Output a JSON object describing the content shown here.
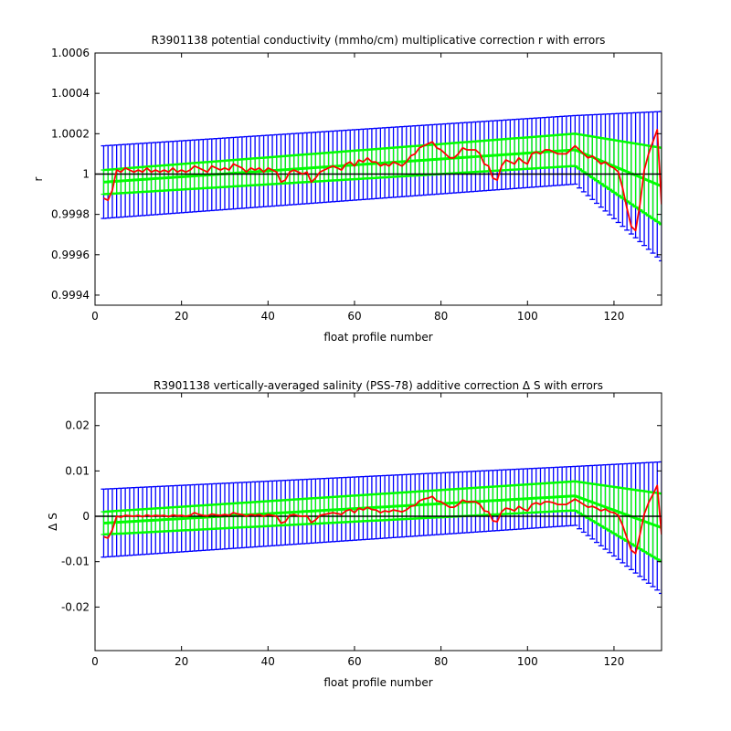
{
  "colors": {
    "background": "#ffffff",
    "axes": "#000000",
    "outer_error": "#0000ff",
    "inner_error": "#00ff00",
    "green_band": "#00ff00",
    "correction_line": "#ff0000",
    "reference_line": "#000000"
  },
  "chart_data": [
    {
      "type": "line",
      "title": "R3901138 potential conductivity (mmho/cm) multiplicative correction r with errors",
      "xlabel": "float profile number",
      "ylabel": "r",
      "xlim": [
        0,
        131
      ],
      "ylim": [
        0.99935,
        1.0006
      ],
      "xticks": [
        0,
        20,
        40,
        60,
        80,
        100,
        120
      ],
      "xtick_labels": [
        "0",
        "20",
        "40",
        "60",
        "80",
        "100",
        "120"
      ],
      "yticks": [
        0.9994,
        0.9996,
        0.9998,
        1.0,
        1.0002,
        1.0004,
        1.0006
      ],
      "ytick_labels": [
        "0.9994",
        "0.9996",
        "0.9998",
        "1",
        "1.0002",
        "1.0004",
        "1.0006"
      ],
      "reference_value": 1.0,
      "fit": {
        "points": [
          [
            2,
            0.99996
          ],
          [
            111,
            1.00012
          ],
          [
            131,
            0.99994
          ]
        ]
      },
      "outer_error_halfwidth": {
        "points": [
          [
            2,
            0.00018
          ],
          [
            111,
            0.00017
          ],
          [
            131,
            0.00037
          ]
        ]
      },
      "inner_error_halfwidth": {
        "points": [
          [
            2,
            6e-05
          ],
          [
            111,
            8e-05
          ],
          [
            131,
            0.00019
          ]
        ]
      },
      "series": [
        {
          "x": [
            2,
            3,
            4,
            5,
            6,
            7,
            8,
            9,
            10,
            11,
            12,
            13,
            14,
            15,
            16,
            17,
            18,
            19,
            20,
            21,
            22,
            23,
            24,
            25,
            26,
            27,
            28,
            29,
            30,
            31,
            32,
            33,
            34,
            35,
            36,
            37,
            38,
            39,
            40,
            41,
            42,
            43,
            44,
            45,
            46,
            47,
            48,
            49,
            50,
            51,
            52,
            53,
            54,
            55,
            56,
            57,
            58,
            59,
            60,
            61,
            62,
            63,
            64,
            65,
            66,
            67,
            68,
            69,
            70,
            71,
            72,
            73,
            74,
            75,
            76,
            77,
            78,
            79,
            80,
            81,
            82,
            83,
            84,
            85,
            86,
            87,
            88,
            89,
            90,
            91,
            92,
            93,
            94,
            95,
            96,
            97,
            98,
            99,
            100,
            101,
            102,
            103,
            104,
            105,
            106,
            107,
            108,
            109,
            110,
            111,
            112,
            113,
            114,
            115,
            116,
            117,
            118,
            119,
            120,
            121,
            122,
            123,
            124,
            125,
            126,
            127,
            128,
            129,
            130,
            131
          ],
          "values": [
            0.99988,
            0.99987,
            0.99992,
            1.00002,
            1.00001,
            1.00003,
            1.00002,
            1.00001,
            1.00002,
            1.00001,
            1.00003,
            1.00001,
            1.00002,
            1.00001,
            1.00002,
            1.00001,
            1.00003,
            1.00001,
            1.00002,
            1.00001,
            1.00002,
            1.00004,
            1.00003,
            1.00002,
            1.00001,
            1.00004,
            1.00003,
            1.00002,
            1.00003,
            1.00002,
            1.00005,
            1.00004,
            1.00003,
            1.00001,
            1.00003,
            1.00002,
            1.00003,
            1.00001,
            1.00003,
            1.00002,
            1.00001,
            0.99996,
            0.99997,
            1.00001,
            1.00002,
            1.00001,
            1.0,
            1.00001,
            0.99996,
            0.99998,
            1.00001,
            1.00002,
            1.00003,
            1.00004,
            1.00003,
            1.00002,
            1.00005,
            1.00006,
            1.00004,
            1.00007,
            1.00006,
            1.00008,
            1.00006,
            1.00006,
            1.00004,
            1.00005,
            1.00004,
            1.00006,
            1.00005,
            1.00004,
            1.00006,
            1.00009,
            1.0001,
            1.00013,
            1.00014,
            1.00015,
            1.00016,
            1.00013,
            1.00012,
            1.0001,
            1.00008,
            1.00008,
            1.0001,
            1.00013,
            1.00012,
            1.00012,
            1.00012,
            1.0001,
            1.00005,
            1.00004,
            0.99998,
            0.99997,
            1.00004,
            1.00007,
            1.00006,
            1.00005,
            1.00008,
            1.00006,
            1.00005,
            1.0001,
            1.00011,
            1.0001,
            1.00012,
            1.00012,
            1.00011,
            1.0001,
            1.0001,
            1.0001,
            1.00012,
            1.00014,
            1.00012,
            1.0001,
            1.00008,
            1.00009,
            1.00007,
            1.00005,
            1.00006,
            1.00004,
            1.00003,
            1.00001,
            0.99993,
            0.99983,
            0.99974,
            0.99972,
            0.99985,
            1.00002,
            1.0001,
            1.00016,
            1.00022,
            0.99985
          ]
        }
      ]
    },
    {
      "type": "line",
      "title": "R3901138 vertically-averaged salinity (PSS-78) additive correction Δ S with errors",
      "xlabel": "float profile number",
      "ylabel": "Δ S",
      "xlim": [
        0,
        131
      ],
      "ylim": [
        -0.0296,
        0.0272
      ],
      "xticks": [
        0,
        20,
        40,
        60,
        80,
        100,
        120
      ],
      "xtick_labels": [
        "0",
        "20",
        "40",
        "60",
        "80",
        "100",
        "120"
      ],
      "yticks": [
        -0.02,
        -0.01,
        0,
        0.01,
        0.02
      ],
      "ytick_labels": [
        "-0.02",
        "-0.01",
        "0",
        "0.01",
        "0.02"
      ],
      "reference_value": 0,
      "fit": {
        "points": [
          [
            2,
            -0.0015
          ],
          [
            111,
            0.0045
          ],
          [
            131,
            -0.0025
          ]
        ]
      },
      "outer_error_halfwidth": {
        "points": [
          [
            2,
            0.0075
          ],
          [
            111,
            0.0065
          ],
          [
            131,
            0.0145
          ]
        ]
      },
      "inner_error_halfwidth": {
        "points": [
          [
            2,
            0.0025
          ],
          [
            111,
            0.0032
          ],
          [
            131,
            0.0075
          ]
        ]
      },
      "series": [
        {
          "x": [
            2,
            3,
            4,
            5,
            6,
            7,
            8,
            9,
            10,
            11,
            12,
            13,
            14,
            15,
            16,
            17,
            18,
            19,
            20,
            21,
            22,
            23,
            24,
            25,
            26,
            27,
            28,
            29,
            30,
            31,
            32,
            33,
            34,
            35,
            36,
            37,
            38,
            39,
            40,
            41,
            42,
            43,
            44,
            45,
            46,
            47,
            48,
            49,
            50,
            51,
            52,
            53,
            54,
            55,
            56,
            57,
            58,
            59,
            60,
            61,
            62,
            63,
            64,
            65,
            66,
            67,
            68,
            69,
            70,
            71,
            72,
            73,
            74,
            75,
            76,
            77,
            78,
            79,
            80,
            81,
            82,
            83,
            84,
            85,
            86,
            87,
            88,
            89,
            90,
            91,
            92,
            93,
            94,
            95,
            96,
            97,
            98,
            99,
            100,
            101,
            102,
            103,
            104,
            105,
            106,
            107,
            108,
            109,
            110,
            111,
            112,
            113,
            114,
            115,
            116,
            117,
            118,
            119,
            120,
            121,
            122,
            123,
            124,
            125,
            126,
            127,
            128,
            129,
            130,
            131
          ],
          "values": [
            -0.0045,
            -0.0048,
            -0.003,
            0.0,
            -0.0002,
            0.0002,
            0.0001,
            0.0,
            0.0002,
            -0.0001,
            0.0003,
            0.0,
            0.0002,
            0.0001,
            0.0002,
            -0.0001,
            0.0003,
            0.0001,
            0.0002,
            0.0,
            0.0002,
            0.0008,
            0.0004,
            0.0002,
            0.0001,
            0.0005,
            0.0003,
            0.0002,
            0.0004,
            0.0002,
            0.0008,
            0.0005,
            0.0004,
            0.0,
            0.0004,
            0.0002,
            0.0004,
            0.0,
            0.0004,
            0.0002,
            0.0,
            -0.0015,
            -0.0012,
            0.0002,
            0.0004,
            0.0001,
            0.0,
            0.0001,
            -0.0014,
            -0.0008,
            0.0002,
            0.0004,
            0.0006,
            0.0008,
            0.0006,
            0.0004,
            0.0012,
            0.0015,
            0.0008,
            0.0018,
            0.0014,
            0.002,
            0.0015,
            0.0014,
            0.0008,
            0.0012,
            0.001,
            0.0014,
            0.0012,
            0.001,
            0.0014,
            0.0022,
            0.0024,
            0.0034,
            0.0038,
            0.004,
            0.0044,
            0.0034,
            0.0032,
            0.0026,
            0.002,
            0.002,
            0.0026,
            0.0036,
            0.0032,
            0.0032,
            0.0032,
            0.0026,
            0.0012,
            0.001,
            -0.001,
            -0.0012,
            0.001,
            0.0018,
            0.0016,
            0.0012,
            0.0022,
            0.0016,
            0.0012,
            0.0026,
            0.003,
            0.0026,
            0.0032,
            0.0032,
            0.003,
            0.0026,
            0.0026,
            0.0026,
            0.0032,
            0.0038,
            0.0032,
            0.0026,
            0.002,
            0.0022,
            0.0018,
            0.0012,
            0.0016,
            0.001,
            0.0008,
            0.0002,
            -0.002,
            -0.0048,
            -0.0075,
            -0.0082,
            -0.004,
            0.0005,
            0.003,
            0.0048,
            0.0068,
            -0.004
          ]
        }
      ]
    }
  ]
}
